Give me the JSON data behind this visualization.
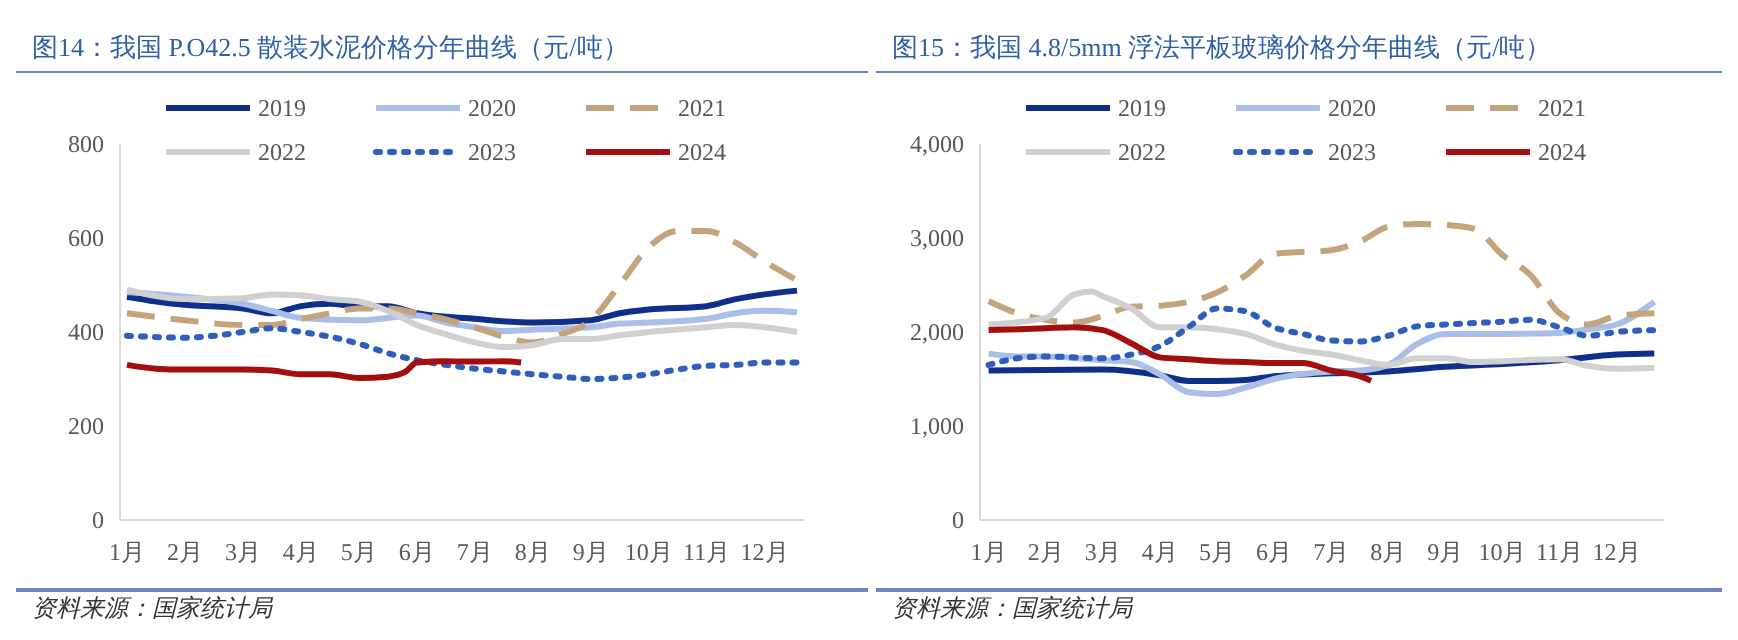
{
  "chart_data": [
    {
      "type": "line",
      "title": "图14：我国 P.O42.5 散装水泥价格分年曲线（元/吨）",
      "annotations": [
        "资料来源：国家统计局"
      ],
      "legend": "top",
      "grid": false,
      "xlim": [
        0.88,
        12.68
      ],
      "xticks": [
        {
          "value": 1,
          "label": "1月"
        },
        {
          "value": 2,
          "label": "2月"
        },
        {
          "value": 3,
          "label": "3月"
        },
        {
          "value": 4,
          "label": "4月"
        },
        {
          "value": 5,
          "label": "5月"
        },
        {
          "value": 6,
          "label": "6月"
        },
        {
          "value": 7,
          "label": "7月"
        },
        {
          "value": 8,
          "label": "8月"
        },
        {
          "value": 9,
          "label": "9月"
        },
        {
          "value": 10,
          "label": "10月"
        },
        {
          "value": 11,
          "label": "11月"
        },
        {
          "value": 12,
          "label": "12月"
        }
      ],
      "ylim": [
        0,
        800
      ],
      "yticks": [
        0,
        200,
        400,
        600,
        800
      ],
      "series": [
        {
          "name": "2019",
          "color": "#0f2f8c",
          "line_style": "solid",
          "x": [
            1,
            1.5,
            2,
            3,
            3.5,
            4,
            4.5,
            5,
            5.5,
            6,
            7,
            8,
            9,
            9.5,
            10,
            11,
            11.5,
            12,
            12.56
          ],
          "values": [
            475,
            465,
            458,
            450,
            440,
            455,
            460,
            455,
            455,
            440,
            428,
            420,
            425,
            440,
            448,
            455,
            470,
            480,
            488
          ]
        },
        {
          "name": "2020",
          "color": "#a9bfe8",
          "line_style": "solid",
          "x": [
            1,
            2,
            3,
            3.5,
            4,
            5,
            6,
            6.5,
            7,
            7.5,
            8,
            9,
            9.5,
            10,
            11,
            11.5,
            12,
            12.56
          ],
          "values": [
            485,
            475,
            460,
            445,
            430,
            425,
            435,
            420,
            410,
            402,
            405,
            410,
            418,
            420,
            428,
            440,
            445,
            442
          ]
        },
        {
          "name": "2021",
          "color": "#c4a47c",
          "line_style": "dashed",
          "x": [
            1,
            2,
            3,
            3.5,
            4,
            4.5,
            5,
            5.5,
            6,
            7,
            7.5,
            8,
            8.5,
            9,
            9.5,
            10,
            10.5,
            11,
            11.5,
            12,
            12.56
          ],
          "values": [
            440,
            425,
            415,
            415,
            428,
            440,
            450,
            450,
            440,
            410,
            390,
            378,
            395,
            425,
            500,
            580,
            615,
            615,
            590,
            550,
            510
          ]
        },
        {
          "name": "2022",
          "color": "#d0d0d0",
          "line_style": "solid",
          "x": [
            1,
            2,
            3,
            3.5,
            4,
            4.5,
            5,
            5.5,
            6,
            6.5,
            7,
            7.5,
            8,
            8.5,
            9,
            9.5,
            10,
            11,
            11.5,
            12,
            12.56
          ],
          "values": [
            490,
            470,
            472,
            480,
            478,
            470,
            465,
            445,
            415,
            395,
            378,
            368,
            372,
            385,
            385,
            393,
            400,
            410,
            415,
            410,
            400
          ]
        },
        {
          "name": "2023",
          "color": "#2e5fbf",
          "line_style": "dotted",
          "x": [
            1,
            2,
            2.5,
            3,
            3.5,
            4,
            4.5,
            5,
            5.5,
            6,
            6.5,
            7,
            7.5,
            8,
            8.5,
            9,
            9.5,
            10,
            10.5,
            11,
            11.5,
            12,
            12.56
          ],
          "values": [
            392,
            388,
            392,
            400,
            408,
            400,
            390,
            375,
            355,
            340,
            330,
            322,
            316,
            310,
            305,
            300,
            303,
            310,
            320,
            328,
            330,
            335,
            335
          ]
        },
        {
          "name": "2024",
          "color": "#a50e0e",
          "line_style": "solid",
          "x": [
            1,
            1.5,
            2,
            3,
            3.5,
            4,
            4.5,
            5,
            5.5,
            5.8,
            6,
            6.5,
            7,
            7.5,
            7.8
          ],
          "values": [
            330,
            322,
            320,
            320,
            318,
            310,
            310,
            302,
            305,
            315,
            335,
            338,
            337,
            338,
            335
          ]
        }
      ]
    },
    {
      "type": "line",
      "title": "图15：我国 4.8/5mm 浮法平板玻璃价格分年曲线（元/吨）",
      "annotations": [
        "资料来源：国家统计局"
      ],
      "legend": "top",
      "grid": false,
      "xlim": [
        0.85,
        12.83
      ],
      "xticks": [
        {
          "value": 1,
          "label": "1月"
        },
        {
          "value": 2,
          "label": "2月"
        },
        {
          "value": 3,
          "label": "3月"
        },
        {
          "value": 4,
          "label": "4月"
        },
        {
          "value": 5,
          "label": "5月"
        },
        {
          "value": 6,
          "label": "6月"
        },
        {
          "value": 7,
          "label": "7月"
        },
        {
          "value": 8,
          "label": "8月"
        },
        {
          "value": 9,
          "label": "9月"
        },
        {
          "value": 10,
          "label": "10月"
        },
        {
          "value": 11,
          "label": "11月"
        },
        {
          "value": 12,
          "label": "12月"
        }
      ],
      "ylim": [
        0,
        4000
      ],
      "yticks": [
        {
          "value": 0,
          "label": "0"
        },
        {
          "value": 1000,
          "label": "1,000"
        },
        {
          "value": 2000,
          "label": "2,000"
        },
        {
          "value": 3000,
          "label": "3,000"
        },
        {
          "value": 4000,
          "label": "4,000"
        }
      ],
      "series": [
        {
          "name": "2019",
          "color": "#0f2f8c",
          "line_style": "solid",
          "x": [
            1,
            3,
            4,
            4.5,
            5,
            5.5,
            6,
            7,
            8,
            9,
            10,
            11,
            12,
            12.66
          ],
          "values": [
            1590,
            1600,
            1540,
            1480,
            1480,
            1490,
            1530,
            1560,
            1580,
            1630,
            1660,
            1700,
            1760,
            1770
          ]
        },
        {
          "name": "2020",
          "color": "#a9bfe8",
          "line_style": "solid",
          "x": [
            1,
            1.5,
            2,
            3,
            3.5,
            4,
            4.5,
            5,
            5.5,
            6,
            7,
            7.5,
            8,
            8.5,
            9,
            10,
            11,
            11.5,
            12,
            12.66
          ],
          "values": [
            1770,
            1740,
            1740,
            1700,
            1680,
            1550,
            1360,
            1340,
            1410,
            1500,
            1580,
            1590,
            1650,
            1870,
            1980,
            1980,
            1990,
            2030,
            2080,
            2320
          ]
        },
        {
          "name": "2021",
          "color": "#c4a47c",
          "line_style": "dashed",
          "x": [
            1,
            1.5,
            2,
            2.5,
            3,
            3.5,
            4,
            5,
            5.5,
            6,
            7,
            7.5,
            8,
            8.5,
            9,
            9.5,
            10,
            10.5,
            11,
            11.5,
            12,
            12.66
          ],
          "values": [
            2330,
            2200,
            2130,
            2100,
            2170,
            2270,
            2280,
            2420,
            2600,
            2830,
            2870,
            2960,
            3120,
            3150,
            3140,
            3100,
            2820,
            2600,
            2200,
            2080,
            2170,
            2200
          ]
        },
        {
          "name": "2022",
          "color": "#d0d0d0",
          "line_style": "solid",
          "x": [
            1,
            2,
            2.5,
            2.8,
            3,
            3.5,
            4,
            4.5,
            5,
            5.5,
            6,
            6.5,
            7,
            7.5,
            8,
            8.5,
            9,
            9.5,
            10,
            11,
            11.5,
            12,
            12.66
          ],
          "values": [
            2080,
            2150,
            2400,
            2430,
            2380,
            2250,
            2050,
            2050,
            2030,
            1980,
            1870,
            1800,
            1760,
            1700,
            1650,
            1720,
            1720,
            1680,
            1690,
            1710,
            1640,
            1610,
            1620
          ]
        },
        {
          "name": "2023",
          "color": "#2e5fbf",
          "line_style": "dotted",
          "x": [
            1,
            1.5,
            2,
            3,
            3.5,
            4,
            4.5,
            5,
            5.5,
            6,
            6.5,
            7,
            7.5,
            8,
            8.5,
            9,
            10,
            10.5,
            11,
            11.5,
            12,
            12.66
          ],
          "values": [
            1650,
            1720,
            1740,
            1720,
            1760,
            1850,
            2050,
            2250,
            2220,
            2050,
            1980,
            1910,
            1900,
            1960,
            2060,
            2080,
            2110,
            2130,
            2050,
            1960,
            2000,
            2020
          ]
        },
        {
          "name": "2024",
          "color": "#a50e0e",
          "line_style": "solid",
          "x": [
            1,
            2,
            2.5,
            3,
            3.5,
            4,
            4.5,
            5,
            5.5,
            6,
            6.5,
            7,
            7.5,
            7.7
          ],
          "values": [
            2020,
            2040,
            2050,
            2020,
            1880,
            1730,
            1710,
            1690,
            1680,
            1670,
            1670,
            1590,
            1530,
            1480
          ]
        }
      ]
    }
  ]
}
